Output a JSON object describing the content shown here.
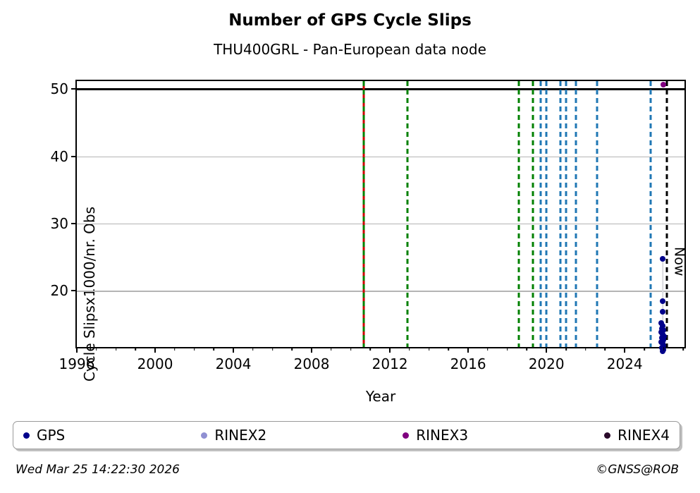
{
  "header": {
    "title": "Number of GPS Cycle Slips",
    "subtitle": "THU400GRL - Pan-European data node"
  },
  "footer": {
    "timestamp": "Wed Mar 25 14:22:30 2026",
    "credit": "©GNSS@ROB"
  },
  "legend": {
    "items": [
      {
        "label": "GPS",
        "color": "#00008B"
      },
      {
        "label": "RINEX2",
        "color": "#8f8fd2"
      },
      {
        "label": "RINEX3",
        "color": "#800080"
      },
      {
        "label": "RINEX4",
        "color": "#2a0a2a"
      }
    ]
  },
  "chart_data": {
    "type": "scatter",
    "title": "Number of GPS Cycle Slips",
    "subtitle": "THU400GRL - Pan-European data node",
    "xlabel": "Year",
    "ylabel": "Cycle Slipsx1000/nr. Obs",
    "xlim": [
      1996,
      2027.2
    ],
    "ylim": [
      11.2,
      51.2
    ],
    "xticks": [
      1996,
      2000,
      2004,
      2008,
      2012,
      2016,
      2020,
      2024
    ],
    "xtick_minor_step": 1,
    "yticks": [
      20,
      30,
      40,
      50
    ],
    "grid_color": "#b4b4b4",
    "threshold_line": {
      "y": 50,
      "color": "#000000"
    },
    "vlines": [
      {
        "x": 2010.68,
        "color": "#008000",
        "under_color": "#cc0000"
      },
      {
        "x": 2012.9,
        "color": "#008000"
      },
      {
        "x": 2018.58,
        "color": "#008000"
      },
      {
        "x": 2019.3,
        "color": "#008000"
      },
      {
        "x": 2019.7,
        "color": "#1f77b4"
      },
      {
        "x": 2020.0,
        "color": "#1f77b4"
      },
      {
        "x": 2020.73,
        "color": "#1f77b4"
      },
      {
        "x": 2021.0,
        "color": "#1f77b4"
      },
      {
        "x": 2021.5,
        "color": "#1f77b4"
      },
      {
        "x": 2022.6,
        "color": "#1f77b4"
      },
      {
        "x": 2025.33,
        "color": "#1f77b4"
      }
    ],
    "now_line": {
      "x": 2026.17,
      "label": "Now",
      "color": "#000000"
    },
    "connector": {
      "x": 2025.94,
      "y1": 11.0,
      "y2": 24.7,
      "color": "#d9d9de"
    },
    "series": [
      {
        "name": "GPS",
        "color": "#00008B",
        "points": [
          [
            2025.95,
            24.7
          ],
          [
            2025.93,
            18.4
          ],
          [
            2025.95,
            16.9
          ],
          [
            2025.88,
            15.2
          ],
          [
            2025.95,
            14.8
          ],
          [
            2025.9,
            14.4
          ],
          [
            2025.98,
            14.1
          ],
          [
            2025.88,
            13.8
          ],
          [
            2025.93,
            13.5
          ],
          [
            2026.0,
            13.2
          ],
          [
            2025.91,
            13.0
          ],
          [
            2025.96,
            12.7
          ],
          [
            2025.88,
            12.4
          ],
          [
            2025.94,
            12.1
          ],
          [
            2025.99,
            11.8
          ],
          [
            2025.91,
            11.5
          ],
          [
            2025.96,
            11.2
          ],
          [
            2025.93,
            11.0
          ]
        ]
      },
      {
        "name": "RINEX2",
        "color": "#8f8fd2",
        "points": []
      },
      {
        "name": "RINEX3",
        "color": "#800080",
        "points": [
          [
            2025.96,
            50.65
          ]
        ]
      },
      {
        "name": "RINEX4",
        "color": "#2a0a2a",
        "points": []
      }
    ]
  }
}
